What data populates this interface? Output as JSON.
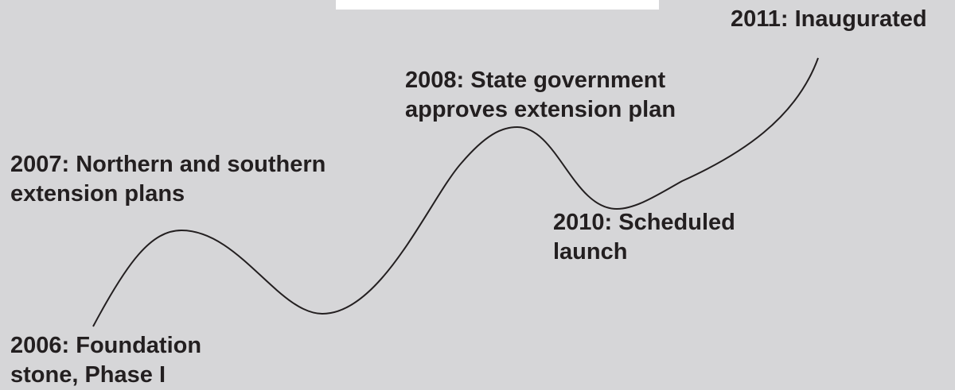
{
  "background_color": "#d6d6d8",
  "text_color": "#231f20",
  "milestones": [
    {
      "lines": [
        "2006: Foundation",
        "stone, Phase I"
      ]
    },
    {
      "lines": [
        "2007: Northern and southern",
        "extension plans"
      ]
    },
    {
      "lines": [
        "2008: State government",
        "approves extension plan"
      ]
    },
    {
      "lines": [
        "2010: Scheduled",
        "launch"
      ]
    },
    {
      "lines": [
        "2011: Inaugurated"
      ]
    }
  ]
}
